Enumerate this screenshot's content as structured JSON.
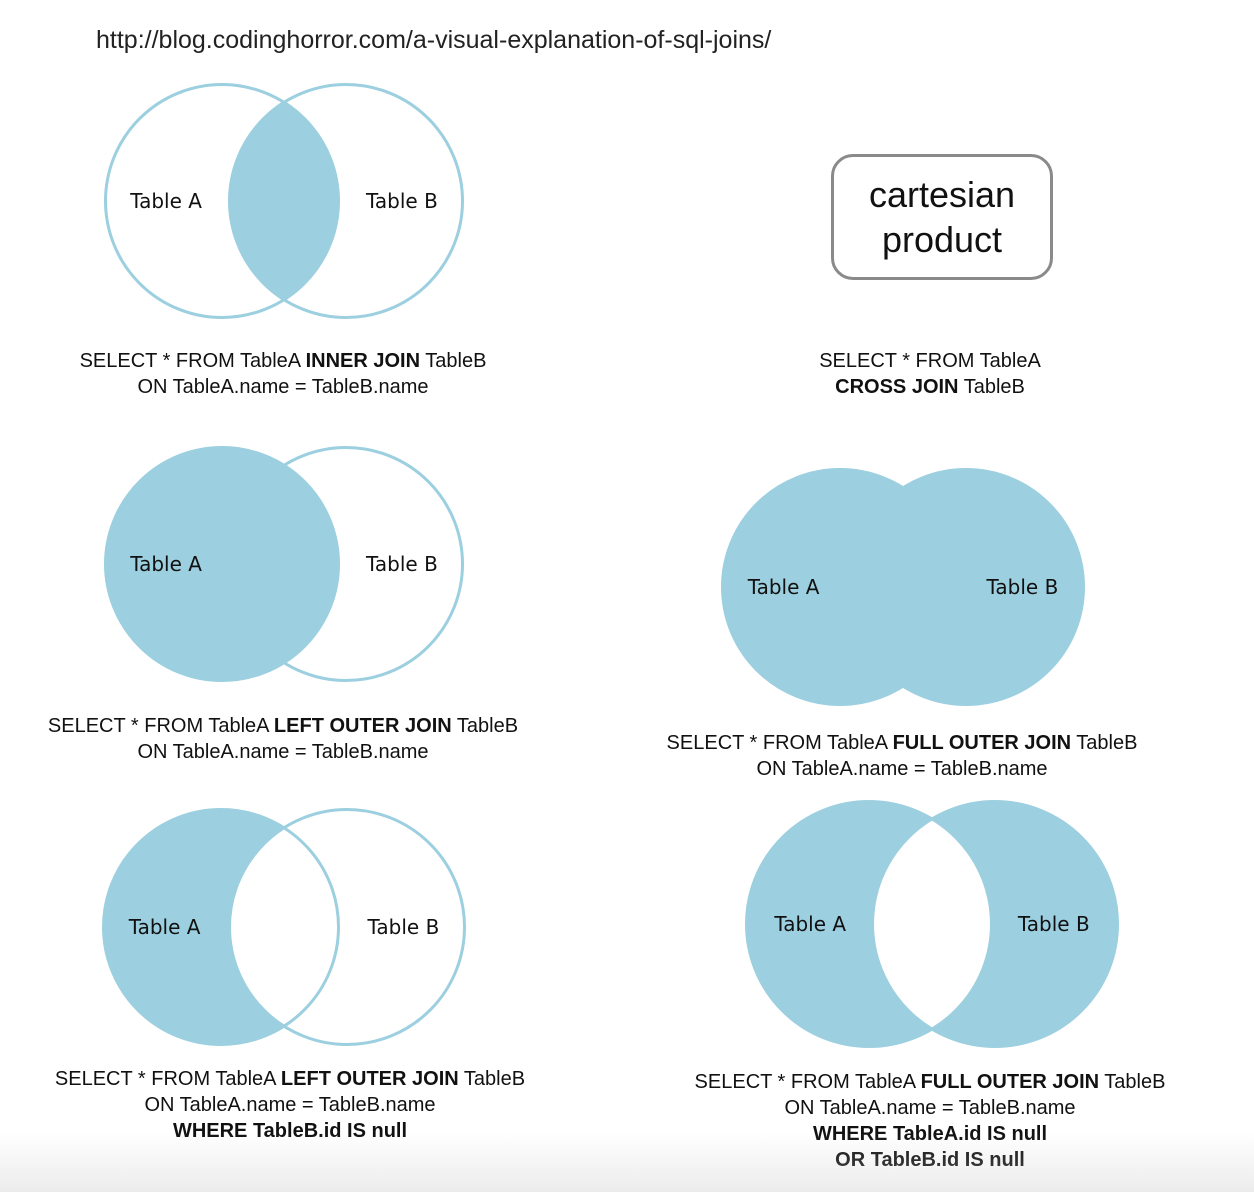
{
  "url": "http://blog.codinghorror.com/a-visual-explanation-of-sql-joins/",
  "colors": {
    "fill": "#9ccfdf",
    "stroke": "#9ccfdf",
    "text": "#111111"
  },
  "labels": {
    "a": "Table A",
    "b": "Table B"
  },
  "cartesian": {
    "line1": "cartesian",
    "line2": "product"
  },
  "diagrams": {
    "inner": {
      "type": "inner",
      "lines": [
        [
          {
            "t": "SELECT * FROM TableA "
          },
          {
            "t": "INNER JOIN",
            "b": true
          },
          {
            "t": " TableB"
          }
        ],
        [
          {
            "t": "ON TableA.name = TableB.name"
          }
        ]
      ]
    },
    "cross": {
      "type": "cross",
      "lines": [
        [
          {
            "t": "SELECT * FROM TableA"
          }
        ],
        [
          {
            "t": "CROSS JOIN",
            "b": true
          },
          {
            "t": " TableB"
          }
        ]
      ]
    },
    "left": {
      "type": "left",
      "lines": [
        [
          {
            "t": "SELECT * FROM TableA "
          },
          {
            "t": "LEFT OUTER JOIN",
            "b": true
          },
          {
            "t": " TableB"
          }
        ],
        [
          {
            "t": "ON TableA.name = TableB.name"
          }
        ]
      ]
    },
    "full": {
      "type": "full",
      "lines": [
        [
          {
            "t": "SELECT * FROM TableA "
          },
          {
            "t": "FULL OUTER JOIN",
            "b": true
          },
          {
            "t": " TableB"
          }
        ],
        [
          {
            "t": "ON TableA.name = TableB.name"
          }
        ]
      ]
    },
    "left_excl": {
      "type": "left_excl",
      "lines": [
        [
          {
            "t": "SELECT * FROM TableA "
          },
          {
            "t": "LEFT OUTER JOIN",
            "b": true
          },
          {
            "t": " TableB"
          }
        ],
        [
          {
            "t": "ON TableA.name = TableB.name"
          }
        ],
        [
          {
            "t": "WHERE TableB.id IS null",
            "b": true
          }
        ]
      ]
    },
    "full_excl": {
      "type": "full_excl",
      "lines": [
        [
          {
            "t": "SELECT * FROM TableA "
          },
          {
            "t": "FULL OUTER JOIN",
            "b": true
          },
          {
            "t": " TableB"
          }
        ],
        [
          {
            "t": "ON TableA.name = TableB.name"
          }
        ],
        [
          {
            "t": "WHERE TableA.id IS null",
            "b": true
          }
        ],
        [
          {
            "t": "OR TableB.id IS null",
            "b": true
          }
        ]
      ]
    }
  }
}
